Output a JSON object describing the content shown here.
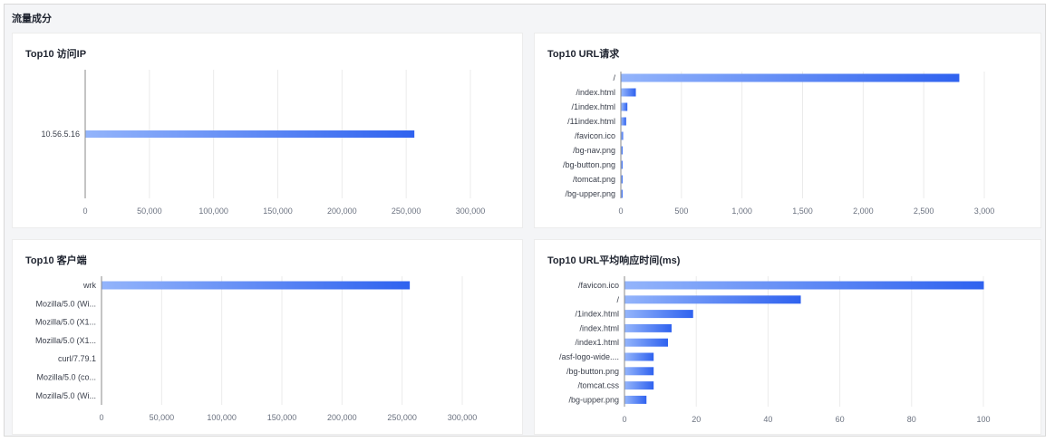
{
  "section": {
    "title": "流量成分"
  },
  "colors": {
    "bar_start": "#93b4fb",
    "bar_end": "#2f62ef",
    "grid": "#ebebeb",
    "axis": "#8a8a8a"
  },
  "chart_data": [
    {
      "type": "bar",
      "orientation": "horizontal",
      "title": "Top10 访问IP",
      "categories": [
        "10.56.5.16"
      ],
      "values": [
        256000
      ],
      "xlim": [
        0,
        300000
      ],
      "xticks": [
        0,
        50000,
        100000,
        150000,
        200000,
        250000,
        300000
      ],
      "xtick_labels": [
        "0",
        "50,000",
        "100,000",
        "150,000",
        "200,000",
        "250,000",
        "300,000"
      ],
      "grid": true
    },
    {
      "type": "bar",
      "orientation": "horizontal",
      "title": "Top10 URL请求",
      "categories": [
        "/",
        "/index.html",
        "/1index.html",
        "/11index.html",
        "/favicon.ico",
        "/bg-nav.png",
        "/bg-button.png",
        "/tomcat.png",
        "/bg-upper.png"
      ],
      "values": [
        2790,
        120,
        50,
        40,
        15,
        10,
        8,
        8,
        8
      ],
      "xlim": [
        0,
        3000
      ],
      "xticks": [
        0,
        500,
        1000,
        1500,
        2000,
        2500,
        3000
      ],
      "xtick_labels": [
        "0",
        "500",
        "1,000",
        "1,500",
        "2,000",
        "2,500",
        "3,000"
      ],
      "grid": true
    },
    {
      "type": "bar",
      "orientation": "horizontal",
      "title": "Top10 客户端",
      "categories": [
        "wrk",
        "Mozilla/5.0 (Wi...",
        "Mozilla/5.0 (X1...",
        "Mozilla/5.0 (X1...",
        "curl/7.79.1",
        "Mozilla/5.0 (co...",
        "Mozilla/5.0 (Wi..."
      ],
      "values": [
        256000,
        0,
        0,
        0,
        0,
        0,
        0
      ],
      "xlim": [
        0,
        300000
      ],
      "xticks": [
        0,
        50000,
        100000,
        150000,
        200000,
        250000,
        300000
      ],
      "xtick_labels": [
        "0",
        "50,000",
        "100,000",
        "150,000",
        "200,000",
        "250,000",
        "300,000"
      ],
      "grid": true
    },
    {
      "type": "bar",
      "orientation": "horizontal",
      "title": "Top10 URL平均响应时间(ms)",
      "categories": [
        "/favicon.ico",
        "/",
        "/1index.html",
        "/index.html",
        "/index1.html",
        "/asf-logo-wide....",
        "/bg-button.png",
        "/tomcat.css",
        "/bg-upper.png"
      ],
      "values": [
        100,
        49,
        19,
        13,
        12,
        8,
        8,
        8,
        6
      ],
      "xlim": [
        0,
        100
      ],
      "xticks": [
        0,
        20,
        40,
        60,
        80,
        100
      ],
      "xtick_labels": [
        "0",
        "20",
        "40",
        "60",
        "80",
        "100"
      ],
      "grid": true
    }
  ]
}
